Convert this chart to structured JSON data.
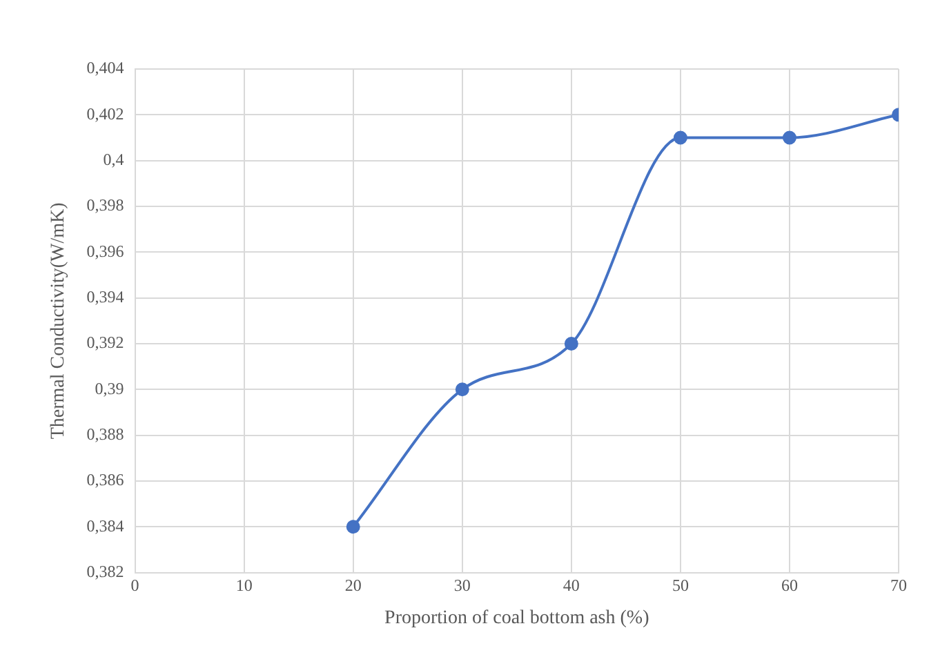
{
  "chart_data": {
    "type": "line",
    "xlabel": "Proportion of coal bottom ash (%)",
    "ylabel": "Thermal Conductivity(W/mK)",
    "x": [
      20,
      30,
      40,
      50,
      60,
      70
    ],
    "series": [
      {
        "color": "#4472c4",
        "values": [
          0.384,
          0.39,
          0.392,
          0.401,
          0.401,
          0.402
        ]
      }
    ],
    "xlim": [
      0,
      70
    ],
    "xticks": [
      0,
      10,
      20,
      30,
      40,
      50,
      60,
      70
    ],
    "ylim": [
      0.382,
      0.404
    ],
    "yticks": [
      {
        "value": 0.382,
        "label": "0,382"
      },
      {
        "value": 0.384,
        "label": "0,384"
      },
      {
        "value": 0.386,
        "label": "0,386"
      },
      {
        "value": 0.388,
        "label": "0,388"
      },
      {
        "value": 0.39,
        "label": "0,39"
      },
      {
        "value": 0.392,
        "label": "0,392"
      },
      {
        "value": 0.394,
        "label": "0,394"
      },
      {
        "value": 0.396,
        "label": "0,396"
      },
      {
        "value": 0.398,
        "label": "0,398"
      },
      {
        "value": 0.4,
        "label": "0,4"
      },
      {
        "value": 0.402,
        "label": "0,402"
      },
      {
        "value": 0.404,
        "label": "0,404"
      }
    ],
    "grid": true,
    "legend": false,
    "marker": "circle",
    "line_style": "solid"
  }
}
